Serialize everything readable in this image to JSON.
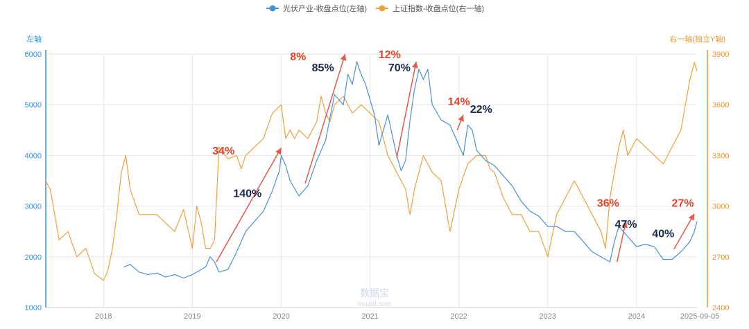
{
  "chart_data": {
    "type": "line",
    "legend": {
      "placement": "top-center",
      "items": [
        {
          "name": "光伏产业-收盘点位(左轴)",
          "color": "#4a90d9"
        },
        {
          "name": "上证指数-收盘点位(右一轴)",
          "color": "#f0a040"
        }
      ]
    },
    "left_axis": {
      "title": "左轴",
      "min": 1000,
      "max": 6000,
      "ticks": [
        1000,
        2000,
        3000,
        4000,
        5000,
        6000
      ],
      "color": "#3a8ee6"
    },
    "right_axis": {
      "title": "右一轴(独立Y轴)",
      "min": 2400,
      "max": 3900,
      "ticks": [
        2400,
        2700,
        3000,
        3300,
        3600,
        3900
      ],
      "color": "#e8963a"
    },
    "x_axis": {
      "labels": [
        {
          "label": "2018",
          "value": 2018.0
        },
        {
          "label": "2019",
          "value": 2019.0
        },
        {
          "label": "2020",
          "value": 2020.0
        },
        {
          "label": "2021",
          "value": 2021.0
        },
        {
          "label": "2022",
          "value": 2022.0
        },
        {
          "label": "2023",
          "value": 2023.0
        },
        {
          "label": "2024",
          "value": 2024.0
        },
        {
          "label": "2025-09-05",
          "value": 2024.68
        }
      ],
      "range": [
        2017.35,
        2024.68
      ]
    },
    "watermark": {
      "line1": "数据宝",
      "line2": "touzid.com"
    },
    "series": [
      {
        "name": "光伏产业-收盘点位(左轴)",
        "axis": "left",
        "color": "#4a90d9",
        "x": [
          2018.23,
          2018.3,
          2018.4,
          2018.5,
          2018.6,
          2018.7,
          2018.8,
          2018.9,
          2019.0,
          2019.1,
          2019.15,
          2019.2,
          2019.25,
          2019.3,
          2019.4,
          2019.5,
          2019.6,
          2019.7,
          2019.8,
          2019.9,
          2019.98,
          2020.0,
          2020.05,
          2020.1,
          2020.2,
          2020.25,
          2020.3,
          2020.4,
          2020.5,
          2020.6,
          2020.7,
          2020.75,
          2020.8,
          2020.85,
          2020.9,
          2020.95,
          2021.0,
          2021.05,
          2021.1,
          2021.15,
          2021.2,
          2021.25,
          2021.3,
          2021.35,
          2021.4,
          2021.45,
          2021.5,
          2021.55,
          2021.6,
          2021.65,
          2021.7,
          2021.8,
          2021.9,
          2021.95,
          2022.0,
          2022.05,
          2022.1,
          2022.15,
          2022.2,
          2022.3,
          2022.4,
          2022.5,
          2022.6,
          2022.7,
          2022.8,
          2022.9,
          2023.0,
          2023.1,
          2023.2,
          2023.3,
          2023.4,
          2023.5,
          2023.6,
          2023.65,
          2023.7,
          2023.75,
          2023.8,
          2023.9,
          2024.0,
          2024.1,
          2024.2,
          2024.3,
          2024.4,
          2024.5,
          2024.6,
          2024.65,
          2024.68
        ],
        "y": [
          1800,
          1850,
          1700,
          1650,
          1680,
          1600,
          1650,
          1580,
          1650,
          1750,
          1800,
          2000,
          1900,
          1700,
          1750,
          2100,
          2500,
          2700,
          2900,
          3300,
          3700,
          4000,
          3800,
          3500,
          3200,
          3300,
          3400,
          3900,
          4300,
          5200,
          5000,
          5600,
          5400,
          5850,
          5600,
          5400,
          5100,
          4800,
          4200,
          4500,
          4800,
          4400,
          4000,
          3700,
          3900,
          4700,
          5300,
          5700,
          5500,
          5700,
          5000,
          4700,
          4600,
          4400,
          4200,
          4000,
          4600,
          4500,
          4100,
          3900,
          3800,
          3600,
          3400,
          3100,
          2900,
          2800,
          2600,
          2600,
          2500,
          2500,
          2300,
          2100,
          2000,
          1950,
          1900,
          2300,
          2600,
          2400,
          2200,
          2250,
          2200,
          1950,
          1950,
          2100,
          2300,
          2500,
          2700
        ]
      },
      {
        "name": "上证指数-收盘点位(右一轴)",
        "axis": "right",
        "color": "#f0a040",
        "x": [
          2017.35,
          2017.4,
          2017.5,
          2017.6,
          2017.7,
          2017.8,
          2017.9,
          2018.0,
          2018.05,
          2018.1,
          2018.15,
          2018.2,
          2018.25,
          2018.3,
          2018.4,
          2018.5,
          2018.6,
          2018.7,
          2018.8,
          2018.9,
          2019.0,
          2019.05,
          2019.1,
          2019.15,
          2019.2,
          2019.25,
          2019.3,
          2019.4,
          2019.5,
          2019.55,
          2019.6,
          2019.7,
          2019.8,
          2019.9,
          2020.0,
          2020.05,
          2020.1,
          2020.15,
          2020.2,
          2020.3,
          2020.4,
          2020.45,
          2020.5,
          2020.55,
          2020.6,
          2020.7,
          2020.8,
          2020.9,
          2021.0,
          2021.1,
          2021.2,
          2021.3,
          2021.4,
          2021.45,
          2021.5,
          2021.6,
          2021.7,
          2021.8,
          2021.9,
          2022.0,
          2022.1,
          2022.2,
          2022.3,
          2022.35,
          2022.4,
          2022.5,
          2022.6,
          2022.7,
          2022.8,
          2022.9,
          2023.0,
          2023.1,
          2023.2,
          2023.3,
          2023.4,
          2023.5,
          2023.6,
          2023.65,
          2023.7,
          2023.8,
          2023.85,
          2023.9,
          2024.0,
          2024.1,
          2024.2,
          2024.3,
          2024.4,
          2024.5,
          2024.55,
          2024.6,
          2024.65,
          2024.68
        ],
        "y": [
          3150,
          3100,
          2800,
          2850,
          2700,
          2750,
          2600,
          2560,
          2620,
          2750,
          2950,
          3200,
          3300,
          3100,
          2950,
          2950,
          2950,
          2900,
          2850,
          2980,
          2750,
          3000,
          2900,
          2750,
          2750,
          2800,
          3350,
          3280,
          3300,
          3220,
          3300,
          3350,
          3400,
          3550,
          3600,
          3400,
          3450,
          3400,
          3450,
          3400,
          3500,
          3650,
          3550,
          3500,
          3600,
          3650,
          3550,
          3600,
          3550,
          3500,
          3300,
          3200,
          3100,
          2950,
          3100,
          3300,
          3200,
          3150,
          2850,
          3100,
          3250,
          3300,
          3300,
          3220,
          3200,
          3050,
          2950,
          2950,
          2850,
          2850,
          2700,
          2950,
          3050,
          3150,
          3050,
          2950,
          2850,
          2750,
          3050,
          3350,
          3450,
          3300,
          3400,
          3350,
          3300,
          3250,
          3350,
          3450,
          3600,
          3750,
          3850,
          3800
        ]
      }
    ],
    "arrows": [
      {
        "from": [
          2019.27,
          1900
        ],
        "to": [
          2020.0,
          4150
        ]
      },
      {
        "from": [
          2020.27,
          3450
        ],
        "to": [
          2020.72,
          6000
        ]
      },
      {
        "from": [
          2021.3,
          3950
        ],
        "to": [
          2021.52,
          5850
        ]
      },
      {
        "from": [
          2021.98,
          4500
        ],
        "to": [
          2022.05,
          4800
        ]
      },
      {
        "from": [
          2023.78,
          1900
        ],
        "to": [
          2023.88,
          2700
        ]
      },
      {
        "from": [
          2024.42,
          2150
        ],
        "to": [
          2024.65,
          2850
        ]
      }
    ],
    "annotations": [
      {
        "text": "34%",
        "x": 2019.35,
        "y": 4020,
        "color": "#e0452a"
      },
      {
        "text": "140%",
        "x": 2019.62,
        "y": 3180,
        "color": "#1a2a4a"
      },
      {
        "text": "8%",
        "x": 2020.19,
        "y": 5880,
        "color": "#e0452a"
      },
      {
        "text": "85%",
        "x": 2020.47,
        "y": 5660,
        "color": "#1a2a4a"
      },
      {
        "text": "12%",
        "x": 2021.22,
        "y": 5920,
        "color": "#e0452a"
      },
      {
        "text": "70%",
        "x": 2021.33,
        "y": 5660,
        "color": "#1a2a4a"
      },
      {
        "text": "14%",
        "x": 2022.0,
        "y": 4990,
        "color": "#e0452a"
      },
      {
        "text": "22%",
        "x": 2022.25,
        "y": 4840,
        "color": "#1a2a4a"
      },
      {
        "text": "36%",
        "x": 2023.68,
        "y": 2990,
        "color": "#e0452a"
      },
      {
        "text": "47%",
        "x": 2023.88,
        "y": 2570,
        "color": "#1a2a4a"
      },
      {
        "text": "27%",
        "x": 2024.52,
        "y": 2990,
        "color": "#e0452a"
      },
      {
        "text": "40%",
        "x": 2024.3,
        "y": 2390,
        "color": "#1a2a4a"
      }
    ]
  }
}
